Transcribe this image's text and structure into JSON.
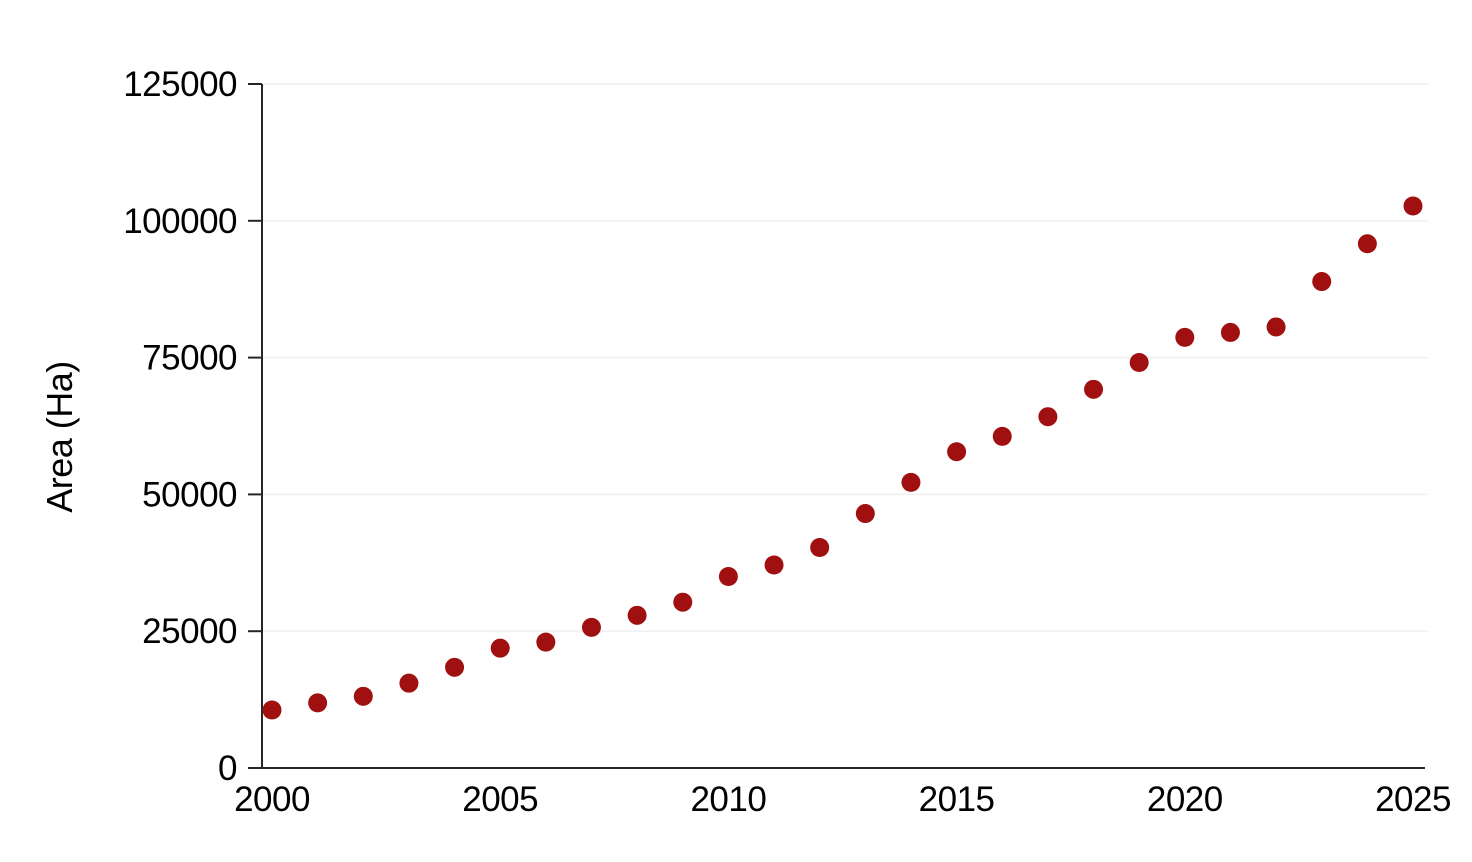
{
  "chart_data": {
    "type": "scatter",
    "title": "",
    "xlabel": "",
    "ylabel": "Area (Ha)",
    "x": [
      2000,
      2001,
      2002,
      2003,
      2004,
      2005,
      2006,
      2007,
      2008,
      2009,
      2010,
      2011,
      2012,
      2013,
      2014,
      2015,
      2016,
      2017,
      2018,
      2019,
      2020,
      2021,
      2022,
      2023,
      2024,
      2025
    ],
    "values": [
      10600,
      11900,
      13100,
      15500,
      18400,
      21900,
      23000,
      25700,
      27900,
      30300,
      35000,
      37100,
      40300,
      46500,
      52200,
      57800,
      60600,
      64200,
      69200,
      74100,
      78700,
      79600,
      80600,
      88900,
      95800,
      102700
    ],
    "series_name": "Area (Ha)",
    "xticks": [
      2000,
      2005,
      2010,
      2015,
      2020,
      2025
    ],
    "yticks": [
      0,
      25000,
      50000,
      75000,
      100000,
      125000
    ],
    "xlim": [
      2000,
      2025
    ],
    "ylim": [
      0,
      125000
    ],
    "grid": "horizontal-only",
    "legend": "none",
    "point_color": "#a01010",
    "axis_color": "#262626",
    "grid_color": "#f2f2f4",
    "label_color": "#000000",
    "background_color": "#ffffff"
  }
}
